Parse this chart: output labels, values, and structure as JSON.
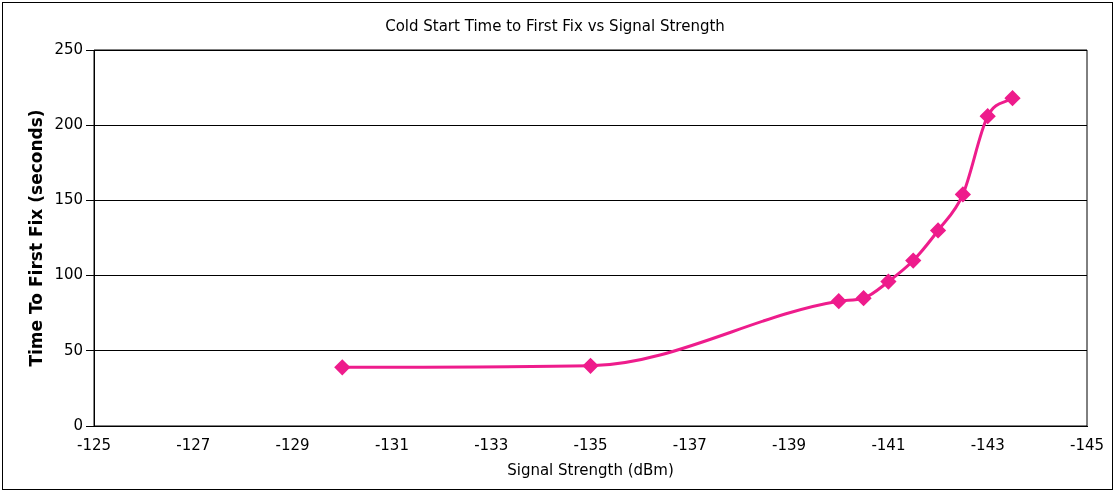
{
  "chart_data": {
    "type": "line",
    "title": "Cold Start Time to First Fix vs Signal Strength",
    "xlabel": "Signal Strength (dBm)",
    "ylabel": "Time To First Fix (seconds)",
    "x": [
      -130,
      -135,
      -140,
      -140.5,
      -141,
      -141.5,
      -142,
      -142.5,
      -143,
      -143.5
    ],
    "series": [
      {
        "color": "#ee1c8c",
        "values": [
          39,
          40,
          83,
          85,
          96,
          110,
          130,
          154,
          206,
          218
        ]
      }
    ],
    "xlim": [
      -125,
      -145
    ],
    "xticks": [
      -125,
      -127,
      -129,
      -131,
      -133,
      -135,
      -137,
      -139,
      -141,
      -143,
      -145
    ],
    "ylim": [
      0,
      250
    ],
    "yticks": [
      0,
      50,
      100,
      150,
      200,
      250
    ],
    "grid": "y",
    "legend": false,
    "marker": "diamond",
    "line_style": "solid"
  }
}
